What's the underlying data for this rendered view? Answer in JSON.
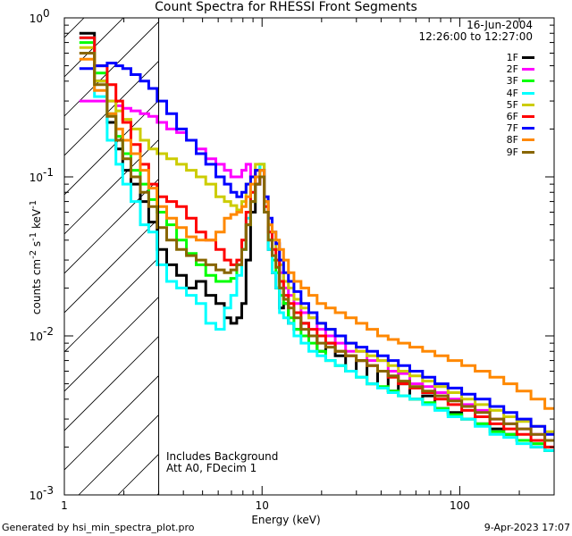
{
  "chart_data": {
    "type": "line",
    "title": "Count Spectra for RHESSI Front Segments",
    "xlabel": "Energy (keV)",
    "ylabel": "counts cm^-2 s^-1 keV^-1",
    "xscale": "log",
    "yscale": "log",
    "xlim": [
      1.0,
      300
    ],
    "ylim": [
      0.001,
      1.0
    ],
    "x_ticks": [
      {
        "value": 1,
        "label": "1"
      },
      {
        "value": 10,
        "label": "10"
      },
      {
        "value": 100,
        "label": "100"
      }
    ],
    "y_ticks": [
      {
        "value": 1.0,
        "label": "10",
        "exp": "0"
      },
      {
        "value": 0.1,
        "label": "10",
        "exp": "-1"
      },
      {
        "value": 0.01,
        "label": "10",
        "exp": "-2"
      },
      {
        "value": 0.001,
        "label": "10",
        "exp": "-3"
      }
    ],
    "excluded_region_max_keV": 3.0,
    "x": [
      1.3,
      1.55,
      1.75,
      1.9,
      2.05,
      2.3,
      2.55,
      2.8,
      3.1,
      3.5,
      3.9,
      4.4,
      4.9,
      5.5,
      6.2,
      6.7,
      7.2,
      7.7,
      8.1,
      8.5,
      9.0,
      9.5,
      10.0,
      10.5,
      11.0,
      11.5,
      12.0,
      12.5,
      13.2,
      14.0,
      15.0,
      16.5,
      18.0,
      20.0,
      22.0,
      25.0,
      28.0,
      32.0,
      36.0,
      41.0,
      46.0,
      52.0,
      60.0,
      70.0,
      80.0,
      95.0,
      110.0,
      130.0,
      155.0,
      180.0,
      210.0,
      250.0,
      290.0
    ],
    "series": [
      {
        "name": "1F",
        "color": "#000000",
        "values": [
          0.8,
          0.4,
          0.22,
          0.15,
          0.11,
          0.09,
          0.07,
          0.052,
          0.035,
          0.028,
          0.024,
          0.02,
          0.022,
          0.018,
          0.016,
          0.013,
          0.012,
          0.013,
          0.016,
          0.03,
          0.06,
          0.09,
          0.1,
          0.07,
          0.035,
          0.025,
          0.02,
          0.015,
          0.016,
          0.012,
          0.011,
          0.012,
          0.01,
          0.008,
          0.009,
          0.0075,
          0.006,
          0.007,
          0.005,
          0.006,
          0.0045,
          0.005,
          0.004,
          0.0042,
          0.0035,
          0.0033,
          0.003,
          0.0028,
          0.0026,
          0.0024,
          0.0022,
          0.002,
          0.0019
        ]
      },
      {
        "name": "2F",
        "color": "#ff00ff",
        "values": [
          0.3,
          0.3,
          0.3,
          0.28,
          0.27,
          0.26,
          0.25,
          0.24,
          0.22,
          0.2,
          0.19,
          0.17,
          0.15,
          0.13,
          0.12,
          0.11,
          0.1,
          0.1,
          0.11,
          0.12,
          0.1,
          0.09,
          0.1,
          0.06,
          0.045,
          0.04,
          0.035,
          0.025,
          0.02,
          0.018,
          0.016,
          0.014,
          0.013,
          0.011,
          0.01,
          0.009,
          0.008,
          0.008,
          0.007,
          0.007,
          0.006,
          0.0058,
          0.005,
          0.0048,
          0.0044,
          0.004,
          0.0037,
          0.0034,
          0.003,
          0.0028,
          0.0026,
          0.0024,
          0.0022
        ]
      },
      {
        "name": "3F",
        "color": "#00ff00",
        "values": [
          0.7,
          0.45,
          0.25,
          0.18,
          0.14,
          0.11,
          0.09,
          0.072,
          0.06,
          0.05,
          0.04,
          0.033,
          0.028,
          0.024,
          0.022,
          0.022,
          0.023,
          0.028,
          0.035,
          0.05,
          0.07,
          0.1,
          0.12,
          0.06,
          0.04,
          0.03,
          0.025,
          0.018,
          0.016,
          0.013,
          0.011,
          0.01,
          0.009,
          0.008,
          0.007,
          0.0065,
          0.006,
          0.0055,
          0.005,
          0.0048,
          0.0045,
          0.0042,
          0.004,
          0.0038,
          0.0035,
          0.0032,
          0.003,
          0.0028,
          0.0025,
          0.0024,
          0.0022,
          0.0021,
          0.0019
        ]
      },
      {
        "name": "4F",
        "color": "#00ffff",
        "values": [
          0.75,
          0.32,
          0.17,
          0.12,
          0.09,
          0.07,
          0.05,
          0.045,
          0.028,
          0.022,
          0.02,
          0.018,
          0.016,
          0.012,
          0.011,
          0.015,
          0.018,
          0.024,
          0.035,
          0.055,
          0.08,
          0.1,
          0.12,
          0.06,
          0.035,
          0.025,
          0.02,
          0.014,
          0.013,
          0.012,
          0.01,
          0.009,
          0.008,
          0.0075,
          0.007,
          0.0065,
          0.006,
          0.0055,
          0.005,
          0.0047,
          0.0044,
          0.0042,
          0.004,
          0.0037,
          0.0034,
          0.0031,
          0.003,
          0.0027,
          0.0024,
          0.0023,
          0.0021,
          0.002,
          0.0019
        ]
      },
      {
        "name": "5F",
        "color": "#cccc00",
        "values": [
          0.65,
          0.4,
          0.3,
          0.26,
          0.23,
          0.2,
          0.17,
          0.15,
          0.14,
          0.13,
          0.12,
          0.11,
          0.1,
          0.09,
          0.075,
          0.07,
          0.066,
          0.062,
          0.07,
          0.09,
          0.1,
          0.12,
          0.12,
          0.07,
          0.05,
          0.04,
          0.035,
          0.028,
          0.022,
          0.02,
          0.017,
          0.015,
          0.013,
          0.012,
          0.011,
          0.01,
          0.009,
          0.008,
          0.0075,
          0.007,
          0.0065,
          0.006,
          0.0056,
          0.0052,
          0.0048,
          0.0044,
          0.004,
          0.0037,
          0.0034,
          0.0031,
          0.0029,
          0.0027,
          0.0025
        ]
      },
      {
        "name": "6F",
        "color": "#ff0000",
        "values": [
          0.75,
          0.5,
          0.38,
          0.3,
          0.22,
          0.16,
          0.12,
          0.09,
          0.075,
          0.07,
          0.065,
          0.055,
          0.045,
          0.04,
          0.035,
          0.03,
          0.028,
          0.03,
          0.04,
          0.06,
          0.08,
          0.11,
          0.11,
          0.065,
          0.045,
          0.035,
          0.03,
          0.022,
          0.018,
          0.016,
          0.014,
          0.012,
          0.011,
          0.01,
          0.009,
          0.008,
          0.0075,
          0.007,
          0.0065,
          0.006,
          0.0055,
          0.005,
          0.0047,
          0.0044,
          0.004,
          0.0037,
          0.0034,
          0.0031,
          0.0028,
          0.0026,
          0.0024,
          0.0022,
          0.002
        ]
      },
      {
        "name": "7F",
        "color": "#0000ff",
        "values": [
          0.48,
          0.5,
          0.52,
          0.5,
          0.48,
          0.44,
          0.4,
          0.36,
          0.3,
          0.25,
          0.2,
          0.17,
          0.14,
          0.12,
          0.1,
          0.09,
          0.08,
          0.075,
          0.08,
          0.09,
          0.1,
          0.11,
          0.11,
          0.075,
          0.055,
          0.045,
          0.038,
          0.03,
          0.025,
          0.022,
          0.019,
          0.016,
          0.014,
          0.012,
          0.011,
          0.01,
          0.009,
          0.0085,
          0.008,
          0.0075,
          0.007,
          0.0065,
          0.006,
          0.0055,
          0.005,
          0.0047,
          0.0043,
          0.004,
          0.0036,
          0.0033,
          0.003,
          0.0027,
          0.0024
        ]
      },
      {
        "name": "8F",
        "color": "#ff8800",
        "values": [
          0.55,
          0.35,
          0.25,
          0.2,
          0.17,
          0.14,
          0.11,
          0.085,
          0.065,
          0.055,
          0.048,
          0.042,
          0.04,
          0.04,
          0.045,
          0.055,
          0.058,
          0.06,
          0.065,
          0.075,
          0.09,
          0.1,
          0.11,
          0.07,
          0.05,
          0.045,
          0.04,
          0.035,
          0.03,
          0.025,
          0.022,
          0.02,
          0.018,
          0.016,
          0.015,
          0.014,
          0.013,
          0.012,
          0.011,
          0.01,
          0.0095,
          0.009,
          0.0085,
          0.008,
          0.0075,
          0.007,
          0.0065,
          0.006,
          0.0055,
          0.005,
          0.0045,
          0.004,
          0.0035
        ]
      },
      {
        "name": "9F",
        "color": "#886600",
        "values": [
          0.6,
          0.38,
          0.24,
          0.17,
          0.13,
          0.1,
          0.08,
          0.065,
          0.048,
          0.04,
          0.035,
          0.032,
          0.03,
          0.028,
          0.026,
          0.025,
          0.026,
          0.028,
          0.035,
          0.05,
          0.07,
          0.09,
          0.1,
          0.06,
          0.04,
          0.032,
          0.027,
          0.02,
          0.017,
          0.015,
          0.013,
          0.011,
          0.01,
          0.009,
          0.0085,
          0.008,
          0.0075,
          0.007,
          0.0065,
          0.006,
          0.0056,
          0.0052,
          0.0048,
          0.0045,
          0.0042,
          0.0039,
          0.0036,
          0.0033,
          0.003,
          0.0028,
          0.0026,
          0.0024,
          0.0022
        ]
      }
    ]
  },
  "header": {
    "date": "16-Jun-2004",
    "time_range": "12:26:00 to 12:27:00"
  },
  "annotation": {
    "line1": "Includes Background",
    "line2": "Att A0, FDecim 1"
  },
  "footer": {
    "generated_by": "Generated by hsi_min_spectra_plot.pro",
    "timestamp": "9-Apr-2023 17:07"
  }
}
